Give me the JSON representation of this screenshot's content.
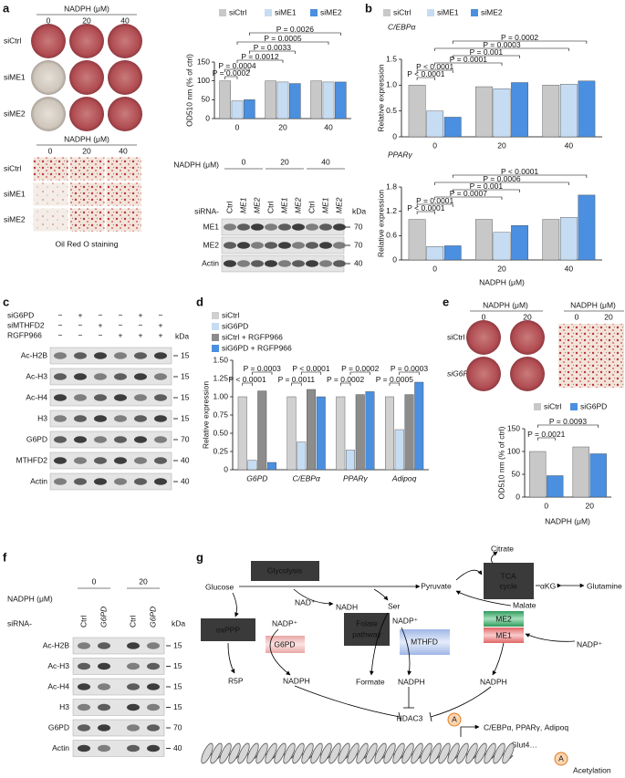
{
  "panel_labels": [
    "a",
    "b",
    "c",
    "d",
    "e",
    "f",
    "g"
  ],
  "panel_a": {
    "plate_nadph_label": "NADPH (μM)",
    "plate_doses": [
      "0",
      "20",
      "40"
    ],
    "plate_rows": [
      "siCtrl",
      "siME1",
      "siME2"
    ],
    "micro_nadph_label": "NADPH (μM)",
    "micro_doses": [
      "0",
      "20",
      "40"
    ],
    "micro_rows": [
      "siCtrl",
      "siME1",
      "siME2"
    ],
    "micro_caption": "Oil Red O staining",
    "blot": {
      "nadph_label": "NADPH (μM)",
      "doses": [
        "0",
        "20",
        "40"
      ],
      "sirna_label": "siRNA-",
      "lanes": [
        "Ctrl",
        "ME1",
        "ME2",
        "Ctrl",
        "ME1",
        "ME2",
        "Ctrl",
        "ME1",
        "ME2"
      ],
      "kda_label": "kDa",
      "rows": [
        {
          "name": "ME1",
          "kda": 70
        },
        {
          "name": "ME2",
          "kda": 70
        },
        {
          "name": "Actin",
          "kda": 40
        }
      ]
    }
  },
  "chart_data": [
    {
      "type": "bar",
      "ylabel": "OD510 nm (% of ctrl)",
      "categories": [
        "0",
        "20",
        "40"
      ],
      "series": [
        {
          "name": "siCtrl",
          "color": "#c8c8c8",
          "values": [
            100,
            100,
            100
          ]
        },
        {
          "name": "siME1",
          "color": "#c6dcf2",
          "values": [
            47,
            97,
            97
          ]
        },
        {
          "name": "siME2",
          "color": "#4a8fe0",
          "values": [
            50,
            93,
            97
          ]
        }
      ],
      "ylim": [
        0,
        150
      ],
      "yticks": [
        0,
        50,
        100,
        150
      ],
      "p_values": [
        "P = 0.0002",
        "P = 0.0004",
        "P = 0.0012",
        "P = 0.0033",
        "P = 0.0005",
        "P = 0.0026"
      ]
    },
    {
      "type": "bar",
      "title": "C/EBPα",
      "ylabel": "Relative expression",
      "categories": [
        "0",
        "20",
        "40"
      ],
      "series": [
        {
          "name": "siCtrl",
          "color": "#c8c8c8",
          "values": [
            1.0,
            0.97,
            1.0
          ]
        },
        {
          "name": "siME1",
          "color": "#c6dcf2",
          "values": [
            0.5,
            0.93,
            1.02
          ]
        },
        {
          "name": "siME2",
          "color": "#4a8fe0",
          "values": [
            0.38,
            1.05,
            1.08
          ]
        }
      ],
      "ylim": [
        0,
        1.5
      ],
      "yticks": [
        0,
        0.5,
        {
          "value": 1,
          "label": "1.0"
        },
        1.5
      ],
      "p_values": [
        "P < 0.0001",
        "P < 0.0001",
        "P = 0.0001",
        "P = 0.001",
        "P = 0.0003",
        "P = 0.0002"
      ]
    },
    {
      "type": "bar",
      "title": "PPARγ",
      "ylabel": "Relative expression",
      "xlabel": "NADPH (μM)",
      "categories": [
        "0",
        "20",
        "40"
      ],
      "series": [
        {
          "color": "#c8c8c8",
          "values": [
            1.0,
            1.0,
            1.0
          ]
        },
        {
          "color": "#c6dcf2",
          "values": [
            0.33,
            0.68,
            1.05
          ]
        },
        {
          "color": "#4a8fe0",
          "values": [
            0.35,
            0.85,
            1.6
          ]
        }
      ],
      "ylim": [
        0,
        1.8
      ],
      "yticks": [
        0,
        0.6,
        1.2,
        1.8
      ],
      "p_values": [
        "P < 0.0001",
        "P = 0.0001",
        "P = 0.0007",
        "P = 0.001",
        "P = 0.0006",
        "P < 0.0001"
      ]
    },
    {
      "type": "bar",
      "ylabel": "Relative expression",
      "categories": [
        "G6PD",
        "C/EBPα",
        "PPARγ",
        "Adipoq"
      ],
      "series": [
        {
          "name": "siCtrl",
          "color": "#d0d0d0",
          "values": [
            1.0,
            1.0,
            1.0,
            1.0
          ]
        },
        {
          "name": "siG6PD",
          "color": "#c6dcf2",
          "values": [
            0.13,
            0.38,
            0.27,
            0.55
          ]
        },
        {
          "name": "siCtrl + RGFP966",
          "color": "#8c8c8c",
          "values": [
            1.08,
            1.1,
            1.03,
            1.03
          ]
        },
        {
          "name": "siG6PD + RGFP966",
          "color": "#4a8fe0",
          "values": [
            0.1,
            1.0,
            1.07,
            1.2
          ]
        }
      ],
      "ylim": [
        0,
        1.5
      ],
      "yticks": [
        0,
        0.25,
        {
          "value": 0.5,
          "label": "0.50"
        },
        0.75,
        {
          "value": 1,
          "label": "1.00"
        },
        1.25,
        {
          "value": 1.5,
          "label": "1.50"
        }
      ],
      "p_values": [
        "P < 0.0001",
        "P = 0.0003",
        "P = 0.0011",
        "P < 0.0001",
        "P = 0.0002",
        "P = 0.0002",
        "P = 0.0005",
        "P = 0.0003"
      ]
    },
    {
      "type": "bar",
      "ylabel": "OD510 nm (% of ctrl)",
      "xlabel": "NADPH (μM)",
      "categories": [
        "0",
        "20"
      ],
      "series": [
        {
          "name": "siCtrl",
          "color": "#c8c8c8",
          "values": [
            100,
            110
          ]
        },
        {
          "name": "siG6PD",
          "color": "#4a8fe0",
          "values": [
            47,
            95
          ]
        }
      ],
      "ylim": [
        0,
        150
      ],
      "yticks": [
        0,
        50,
        100,
        150
      ],
      "p_values": [
        "P = 0.0021",
        "P = 0.0093"
      ]
    }
  ],
  "panel_c": {
    "treatments": [
      {
        "name": "siG6PD",
        "signs": [
          "−",
          "+",
          "−",
          "−",
          "+",
          "−"
        ]
      },
      {
        "name": "siMTHFD2",
        "signs": [
          "−",
          "−",
          "+",
          "−",
          "−",
          "+"
        ]
      },
      {
        "name": "RGFP966",
        "signs": [
          "−",
          "−",
          "−",
          "+",
          "+",
          "+"
        ]
      }
    ],
    "kda_label": "kDa",
    "rows": [
      {
        "name": "Ac-H2B",
        "kda": 15
      },
      {
        "name": "Ac-H3",
        "kda": 15
      },
      {
        "name": "Ac-H4",
        "kda": 15
      },
      {
        "name": "H3",
        "kda": 15
      },
      {
        "name": "G6PD",
        "kda": 70
      },
      {
        "name": "MTHFD2",
        "kda": 40
      },
      {
        "name": "Actin",
        "kda": 40
      }
    ]
  },
  "panel_e": {
    "plate_nadph_label": "NADPH (μM)",
    "plate_doses": [
      "0",
      "20"
    ],
    "plate_rows": [
      "siCtrl",
      "siG6PD"
    ],
    "micro_nadph_label": "NADPH (μM)",
    "micro_doses": [
      "0",
      "20"
    ]
  },
  "panel_f": {
    "nadph_label": "NADPH (μM)",
    "doses": [
      "0",
      "20"
    ],
    "sirna_label": "siRNA-",
    "lanes": [
      "Ctrl",
      "G6PD",
      "Ctrl",
      "G6PD"
    ],
    "kda_label": "kDa",
    "rows": [
      {
        "name": "Ac-H2B",
        "kda": 15
      },
      {
        "name": "Ac-H3",
        "kda": 15
      },
      {
        "name": "Ac-H4",
        "kda": 15
      },
      {
        "name": "H3",
        "kda": 15
      },
      {
        "name": "G6PD",
        "kda": 70
      },
      {
        "name": "Actin",
        "kda": 40
      }
    ]
  },
  "panel_g": {
    "glucose": "Glucose",
    "glycolysis": "Glycolysis",
    "nad": "NAD⁺",
    "nadh": "NADH",
    "ser": "Ser",
    "pyruvate": "Pyruvate",
    "tca": [
      "TCA",
      "cycle"
    ],
    "citrate": "Citrate",
    "akg": "αKG",
    "glutamine": "Glutamine",
    "malate": "Malate",
    "oxppp": "oxPPP",
    "nadp_1": "NADP⁺",
    "g6pd": "G6PD",
    "r5p": "R5P",
    "nadph_1": "NADPH",
    "folate": [
      "Folate",
      "pathway"
    ],
    "nadp_2": "NADP⁺",
    "mthfd": "MTHFD",
    "formate": "Formate",
    "nadph_2": "NADPH",
    "me2": "ME2",
    "me1": "ME1",
    "nadp_3": "NADP⁺",
    "nadph_3": "NADPH",
    "hdac3": "HDAC3",
    "targets": "C/EBPα, PPARγ, Adipoq",
    "glut4": "Glut4…",
    "acetyl_mark": "A",
    "acetyl_mark_legend": "A",
    "acetylation": "Acetylation"
  }
}
